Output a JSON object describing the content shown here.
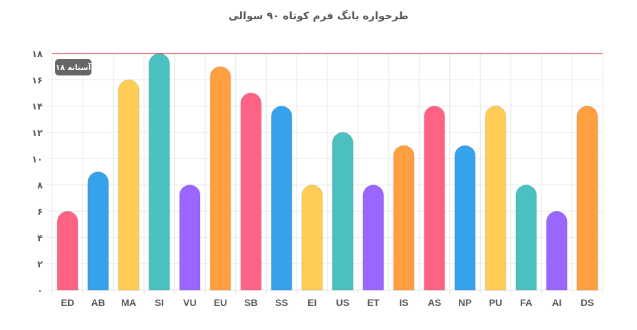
{
  "chart_data": {
    "type": "bar",
    "title": "طرحواره یانگ فرم کوتاه ۹۰ سوالی",
    "xlabel": "",
    "ylabel": "",
    "ylim": [
      0,
      18
    ],
    "yticks": [
      "۰",
      "۲",
      "۴",
      "۶",
      "۸",
      "۱۰",
      "۱۲",
      "۱۴",
      "۱۶",
      "۱۸"
    ],
    "categories": [
      "ED",
      "AB",
      "MA",
      "SI",
      "VU",
      "EU",
      "SB",
      "SS",
      "EI",
      "US",
      "ET",
      "IS",
      "AS",
      "NP",
      "PU",
      "FA",
      "AI",
      "DS"
    ],
    "values": [
      6,
      9,
      16,
      18,
      8,
      17,
      15,
      14,
      8,
      12,
      8,
      11,
      14,
      11,
      14,
      8,
      6,
      14
    ],
    "colors": [
      "#ff6384",
      "#36a2eb",
      "#ffcd56",
      "#4bc0c0",
      "#9966ff",
      "#ff9f40",
      "#ff6384",
      "#36a2eb",
      "#ffcd56",
      "#4bc0c0",
      "#9966ff",
      "#ff9f40",
      "#ff6384",
      "#36a2eb",
      "#ffcd56",
      "#4bc0c0",
      "#9966ff",
      "#ff9f40"
    ],
    "grid": true,
    "legend": "none",
    "threshold": {
      "value": 18,
      "label": "آستانه ۱۸",
      "color": "#cc0000"
    }
  }
}
